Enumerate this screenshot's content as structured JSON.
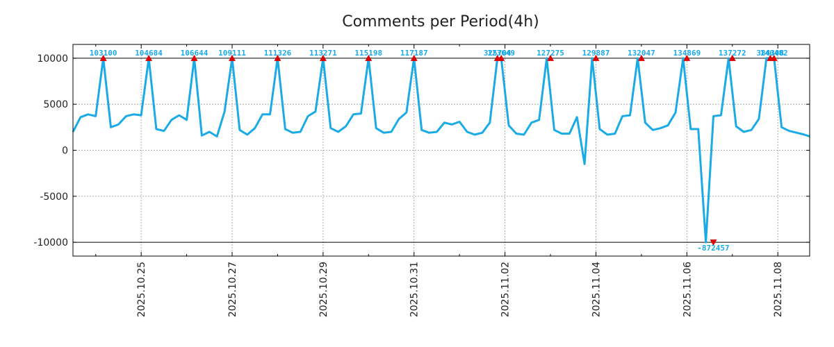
{
  "chart_data": {
    "type": "line",
    "title": "Comments per Period(4h)",
    "xlabel": "",
    "ylabel": "",
    "ylim": [
      -11500,
      11500
    ],
    "grid": true,
    "clip_limit": 10000,
    "colors": {
      "line": "#1aabe6",
      "marker": "#dd0000",
      "annotation": "#1aabe6",
      "limit_line": "#000000",
      "grid": "#999999"
    },
    "x_tick_labels": [
      "2025.10.25",
      "2025.10.27",
      "2025.10.29",
      "2025.10.31",
      "2025.11.02",
      "2025.11.04",
      "2025.11.06",
      "2025.11.08"
    ],
    "y_tick_labels": [
      "10000",
      "5000",
      "0",
      "-5000",
      "-10000"
    ],
    "y_ticks": [
      10000,
      5000,
      0,
      -5000,
      -10000
    ],
    "x_tick_index": [
      3,
      5,
      7,
      9,
      11,
      13,
      15,
      17
    ],
    "x_start": 1.5,
    "x_end": 17.7,
    "x_major_start": 3,
    "x_major_end": 17,
    "x_major_step": 2,
    "x_minor_start": 2,
    "x_minor_end": 17,
    "x_minor_step": 1,
    "series": [
      {
        "name": "Comments",
        "x": [
          1.5,
          1.667,
          1.833,
          2.0,
          2.167,
          2.333,
          2.5,
          2.667,
          2.833,
          3.0,
          3.167,
          3.333,
          3.5,
          3.667,
          3.833,
          4.0,
          4.167,
          4.333,
          4.5,
          4.667,
          4.833,
          5.0,
          5.167,
          5.333,
          5.5,
          5.667,
          5.833,
          6.0,
          6.167,
          6.333,
          6.5,
          6.667,
          6.833,
          7.0,
          7.167,
          7.333,
          7.5,
          7.667,
          7.833,
          8.0,
          8.167,
          8.333,
          8.5,
          8.667,
          8.833,
          9.0,
          9.167,
          9.333,
          9.5,
          9.667,
          9.833,
          10.0,
          10.167,
          10.333,
          10.5,
          10.667,
          10.833,
          10.917,
          11.083,
          11.25,
          11.417,
          11.583,
          11.75,
          11.917,
          12.083,
          12.25,
          12.417,
          12.583,
          12.75,
          12.917,
          13.083,
          13.25,
          13.417,
          13.583,
          13.75,
          13.917,
          14.083,
          14.25,
          14.417,
          14.583,
          14.75,
          14.917,
          15.083,
          15.25,
          15.417,
          15.583,
          15.75,
          15.917,
          16.083,
          16.25,
          16.417,
          16.583,
          16.75,
          16.917,
          17.083,
          17.25,
          17.417,
          17.583,
          17.7
        ],
        "y": [
          2000,
          3600,
          3900,
          3700,
          10000,
          2500,
          2800,
          3700,
          3900,
          3800,
          10000,
          2300,
          2100,
          3300,
          3800,
          3300,
          10000,
          1600,
          2000,
          1500,
          4200,
          10000,
          2200,
          1700,
          2400,
          3900,
          3900,
          10000,
          2300,
          1900,
          2000,
          3700,
          4200,
          10000,
          2400,
          2000,
          2600,
          3900,
          4000,
          10000,
          2400,
          1900,
          2000,
          3400,
          4100,
          10000,
          2200,
          1900,
          2000,
          3000,
          2800,
          3100,
          2000,
          1700,
          1900,
          3000,
          10000,
          10000,
          2700,
          1800,
          1700,
          3000,
          3300,
          10000,
          2200,
          1800,
          1800,
          3600,
          -1500,
          10000,
          2300,
          1700,
          1800,
          3700,
          3800,
          10000,
          3000,
          2200,
          2400,
          2700,
          4100,
          10000,
          2300,
          2300,
          -10000,
          3700,
          3800,
          10000,
          2600,
          2000,
          2200,
          3400,
          10000,
          10000,
          2500,
          2100,
          1900,
          1700,
          1500
        ]
      }
    ],
    "annotations": [
      {
        "x": 2.167,
        "y": 10000,
        "label": "103100"
      },
      {
        "x": 3.167,
        "y": 10000,
        "label": "104684"
      },
      {
        "x": 4.167,
        "y": 10000,
        "label": "106644"
      },
      {
        "x": 5.0,
        "y": 10000,
        "label": "109111"
      },
      {
        "x": 6.0,
        "y": 10000,
        "label": "111326"
      },
      {
        "x": 7.0,
        "y": 10000,
        "label": "113271"
      },
      {
        "x": 8.0,
        "y": 10000,
        "label": "115198"
      },
      {
        "x": 9.0,
        "y": 10000,
        "label": "117187"
      },
      {
        "x": 10.833,
        "y": 10000,
        "label": "325704"
      },
      {
        "x": 10.917,
        "y": 10000,
        "label": "123649"
      },
      {
        "x": 12.0,
        "y": 10000,
        "label": "127275"
      },
      {
        "x": 13.0,
        "y": 10000,
        "label": "129887"
      },
      {
        "x": 14.0,
        "y": 10000,
        "label": "132047"
      },
      {
        "x": 15.0,
        "y": 10000,
        "label": "134869"
      },
      {
        "x": 15.583,
        "y": -10000,
        "label": "-872457"
      },
      {
        "x": 16.0,
        "y": 10000,
        "label": "137272"
      },
      {
        "x": 16.833,
        "y": 10000,
        "label": "384308"
      },
      {
        "x": 16.917,
        "y": 10000,
        "label": "140482"
      }
    ]
  }
}
